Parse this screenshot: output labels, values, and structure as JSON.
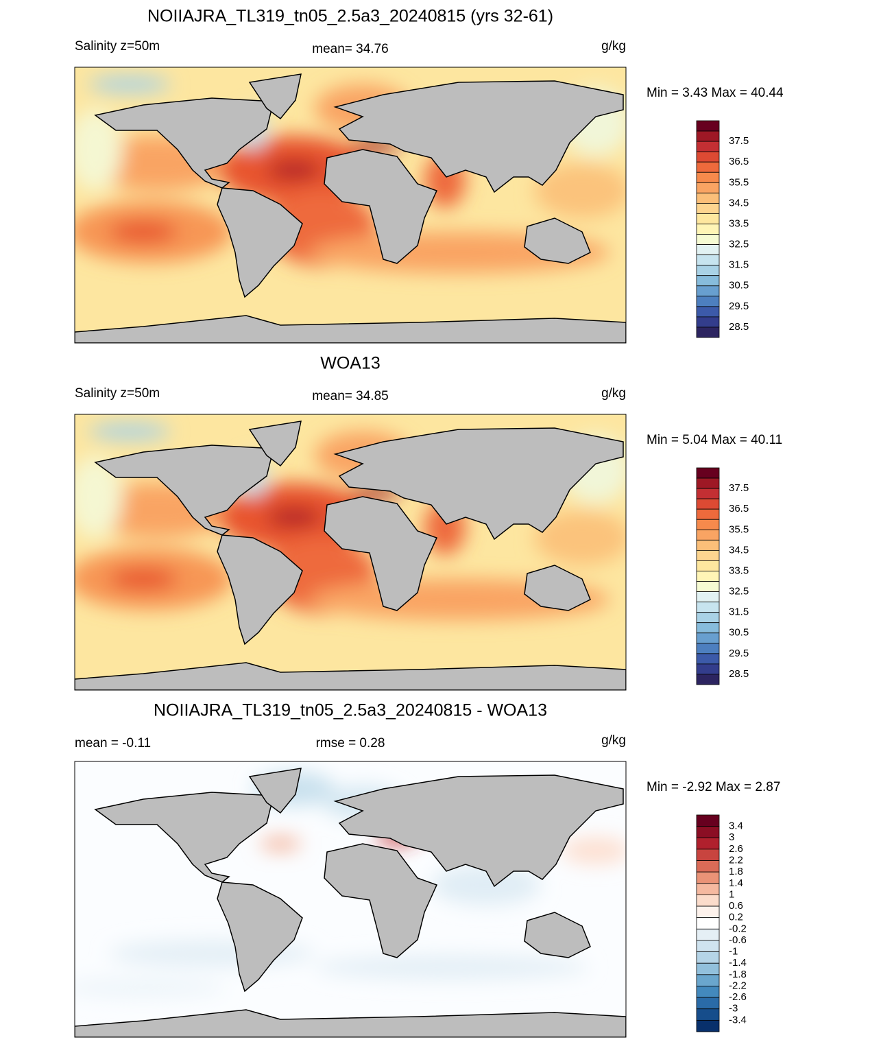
{
  "panels": [
    {
      "title": "NOIIAJRA_TL319_tn05_2.5a3_20240815 (yrs 32-61)",
      "left": "Salinity z=50m",
      "center": "mean=  34.76",
      "units": "g/kg",
      "minmax": "Min =   3.43 Max =  40.44",
      "colorbar_labels": [
        "37.5",
        "36.5",
        "35.5",
        "34.5",
        "33.5",
        "32.5",
        "31.5",
        "30.5",
        "29.5",
        "28.5"
      ]
    },
    {
      "title": "WOA13",
      "left": "Salinity z=50m",
      "center": "mean=  34.85",
      "units": "g/kg",
      "minmax": "Min =   5.04 Max =  40.11",
      "colorbar_labels": [
        "37.5",
        "36.5",
        "35.5",
        "34.5",
        "33.5",
        "32.5",
        "31.5",
        "30.5",
        "29.5",
        "28.5"
      ]
    },
    {
      "title": "NOIIAJRA_TL319_tn05_2.5a3_20240815 - WOA13",
      "left": "mean =  -0.11",
      "center": "rmse =   0.28",
      "units": "g/kg",
      "minmax": "Min =  -2.92 Max =   2.87",
      "colorbar_labels": [
        "3.4",
        "3",
        "2.6",
        "2.2",
        "1.8",
        "1.4",
        "1",
        "0.6",
        "0.2",
        "-0.2",
        "-0.6",
        "-1",
        "-1.4",
        "-1.8",
        "-2.2",
        "-2.6",
        "-3",
        "-3.4"
      ]
    }
  ]
}
